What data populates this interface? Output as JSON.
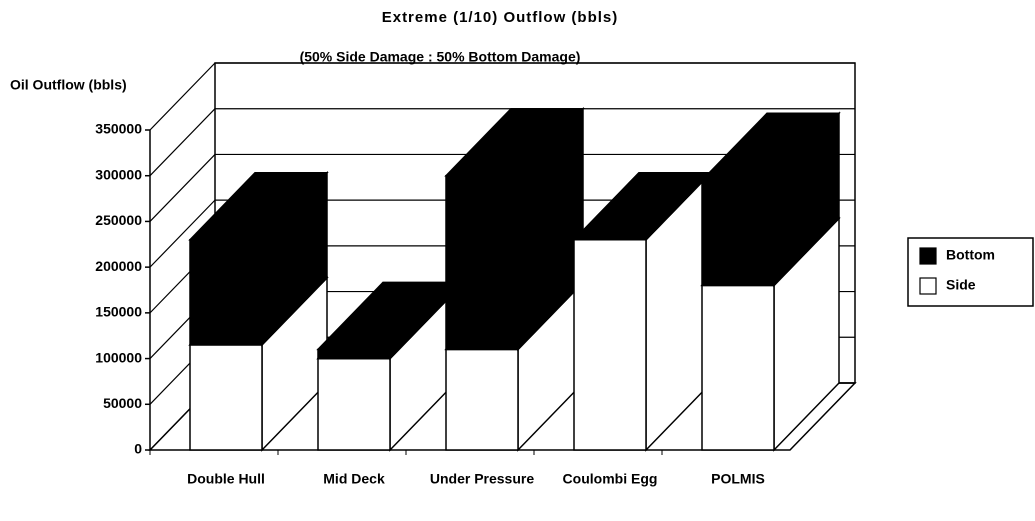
{
  "chart_data": {
    "type": "bar3d_stacked",
    "title": "Extreme (1/10) Outflow  (bbls)",
    "subtitle": "(50% Side Damage : 50% Bottom Damage)",
    "y_label": "Oil Outflow (bbls)",
    "categories": [
      "Double Hull",
      "Mid Deck",
      "Under Pressure",
      "Coulombi Egg",
      "POLMIS"
    ],
    "series": [
      {
        "name": "Side",
        "color": "#ffffff",
        "values": [
          115000,
          100000,
          110000,
          230000,
          180000
        ]
      },
      {
        "name": "Bottom",
        "color": "#000000",
        "values": [
          115000,
          10000,
          190000,
          0,
          115000
        ]
      }
    ],
    "ylim": [
      0,
      350000
    ],
    "yticks": [
      0,
      50000,
      100000,
      150000,
      200000,
      250000,
      300000,
      350000
    ],
    "grid": true,
    "legend": "right"
  }
}
